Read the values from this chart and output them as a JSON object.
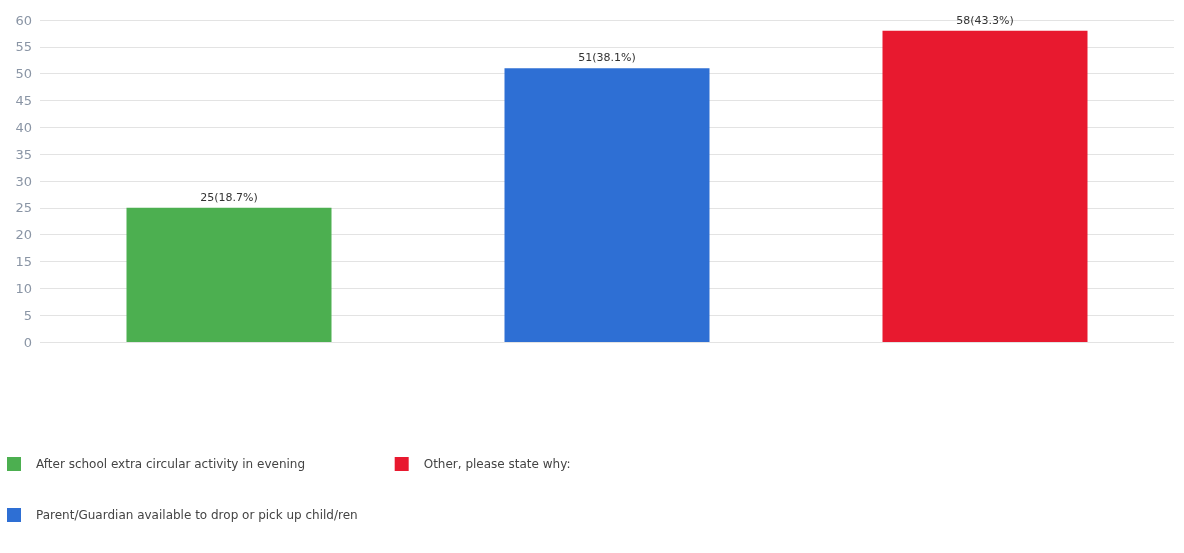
{
  "chart_data": {
    "type": "bar",
    "categories": [
      null,
      null,
      null
    ],
    "series": [
      {
        "name": "After school extra circular activity in evening",
        "color": "#4caf50",
        "values": [
          25,
          null,
          null
        ],
        "value_labels": [
          "25(18.7%)",
          null,
          null
        ]
      },
      {
        "name": "Parent/Guardian available to drop or pick up child/ren",
        "color": "#2e6fd4",
        "values": [
          null,
          51,
          null
        ],
        "value_labels": [
          null,
          "51(38.1%)",
          null
        ]
      },
      {
        "name": "Other, please state why:",
        "color": "#e8192f",
        "values": [
          null,
          null,
          58
        ],
        "value_labels": [
          null,
          null,
          "58(43.3%)"
        ]
      }
    ],
    "ylim": [
      0,
      60
    ],
    "yticks": [
      0,
      5,
      10,
      15,
      20,
      25,
      30,
      35,
      40,
      45,
      50,
      55,
      60
    ],
    "grid": "y",
    "legend": "bottom left"
  }
}
